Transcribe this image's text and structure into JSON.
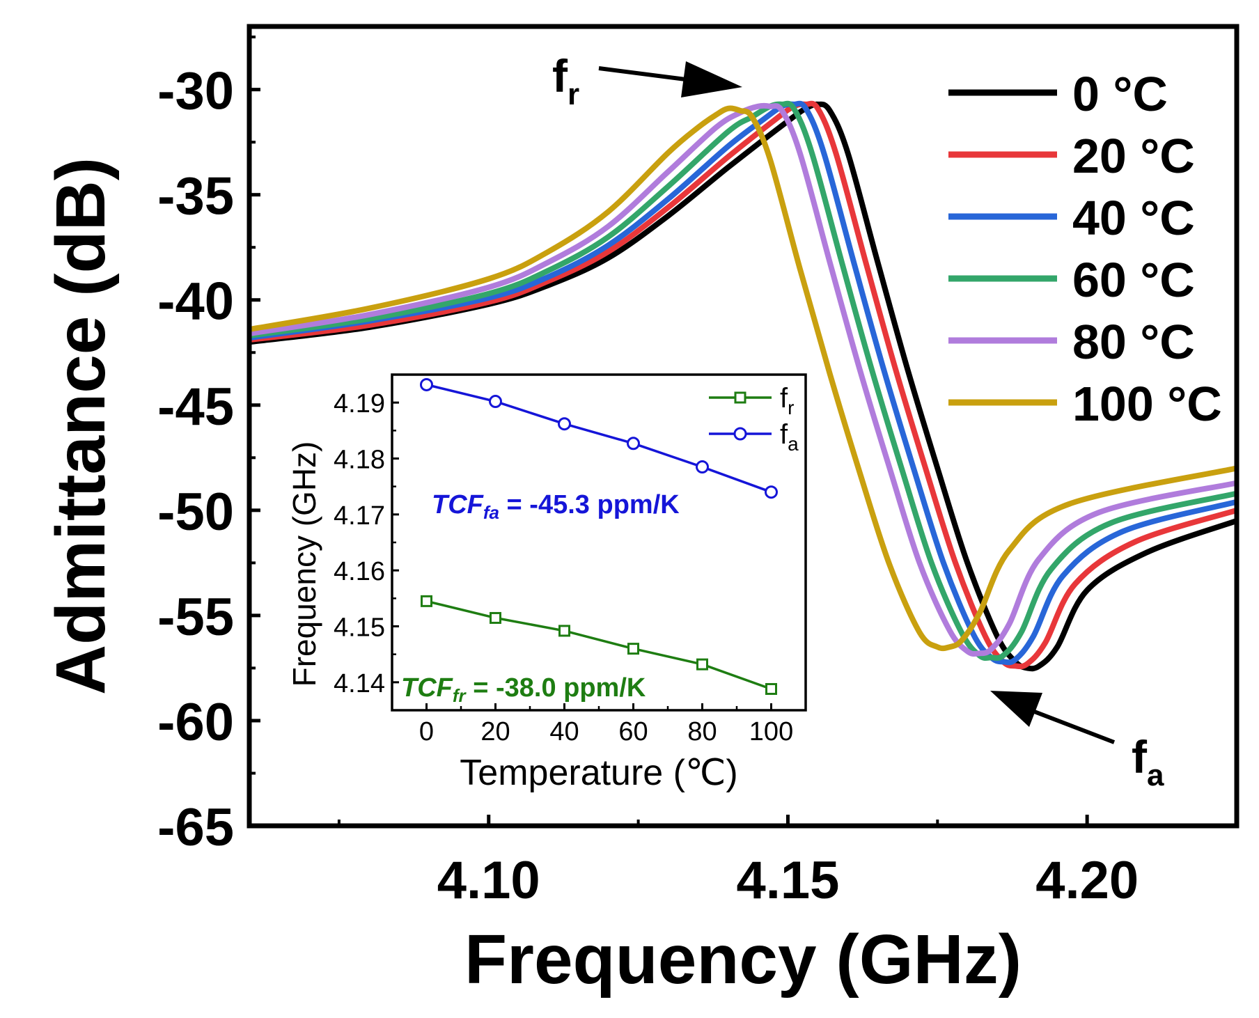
{
  "chart_data": [
    {
      "type": "line",
      "xlabel": "Frequency (GHz)",
      "ylabel": "Admittance (dB)",
      "xlim": [
        4.06,
        4.225
      ],
      "ylim": [
        -65,
        -27
      ],
      "xticks": [
        4.1,
        4.15,
        4.2
      ],
      "xtick_labels": [
        "4.10",
        "4.15",
        "4.20"
      ],
      "yticks": [
        -30,
        -35,
        -40,
        -45,
        -50,
        -55,
        -60,
        -65
      ],
      "ytick_labels": [
        "-30",
        "-35",
        "-40",
        "-45",
        "-50",
        "-55",
        "-60",
        "-65"
      ],
      "grid": false,
      "legend": "top-right",
      "series": [
        {
          "name": "0 °C",
          "color": "#000000",
          "x": [
            4.06,
            4.08,
            4.1,
            4.11,
            4.12,
            4.13,
            4.14,
            4.15,
            4.153,
            4.155,
            4.157,
            4.16,
            4.165,
            4.17,
            4.175,
            4.18,
            4.185,
            4.188,
            4.19,
            4.192,
            4.195,
            4.2,
            4.21,
            4.225
          ],
          "y": [
            -42.0,
            -41.3,
            -40.2,
            -39.3,
            -38.0,
            -36.0,
            -33.7,
            -31.5,
            -30.9,
            -30.7,
            -31.0,
            -33.0,
            -38.2,
            -43.3,
            -48.0,
            -52.5,
            -56.0,
            -57.2,
            -57.5,
            -57.4,
            -56.5,
            -53.8,
            -52.0,
            -50.5
          ]
        },
        {
          "name": "20 °C",
          "color": "#e8373a",
          "x": [
            4.06,
            4.08,
            4.1,
            4.11,
            4.12,
            4.13,
            4.14,
            4.148,
            4.151,
            4.153,
            4.155,
            4.158,
            4.163,
            4.168,
            4.173,
            4.178,
            4.183,
            4.186,
            4.188,
            4.19,
            4.193,
            4.198,
            4.208,
            4.225
          ],
          "y": [
            -41.9,
            -41.2,
            -40.1,
            -39.1,
            -37.7,
            -35.6,
            -33.2,
            -31.4,
            -30.8,
            -30.7,
            -30.9,
            -33.0,
            -38.2,
            -43.3,
            -48.0,
            -52.5,
            -56.0,
            -57.2,
            -57.4,
            -57.3,
            -56.3,
            -53.5,
            -51.5,
            -50.0
          ]
        },
        {
          "name": "40 °C",
          "color": "#2866d8",
          "x": [
            4.06,
            4.08,
            4.1,
            4.11,
            4.12,
            4.13,
            4.14,
            4.146,
            4.149,
            4.151,
            4.153,
            4.156,
            4.161,
            4.166,
            4.171,
            4.176,
            4.181,
            4.184,
            4.186,
            4.188,
            4.191,
            4.196,
            4.206,
            4.225
          ],
          "y": [
            -41.8,
            -41.0,
            -39.9,
            -38.9,
            -37.4,
            -35.2,
            -32.7,
            -31.4,
            -30.8,
            -30.7,
            -30.9,
            -33.0,
            -38.2,
            -43.3,
            -48.0,
            -52.5,
            -55.9,
            -57.0,
            -57.2,
            -57.1,
            -56.0,
            -53.1,
            -51.0,
            -49.6
          ]
        },
        {
          "name": "60 °C",
          "color": "#33a66a",
          "x": [
            4.06,
            4.08,
            4.1,
            4.11,
            4.12,
            4.13,
            4.14,
            4.144,
            4.147,
            4.149,
            4.151,
            4.154,
            4.159,
            4.164,
            4.169,
            4.174,
            4.179,
            4.182,
            4.184,
            4.186,
            4.189,
            4.194,
            4.204,
            4.225
          ],
          "y": [
            -41.7,
            -40.9,
            -39.7,
            -38.6,
            -37.0,
            -34.6,
            -32.0,
            -31.3,
            -30.8,
            -30.7,
            -30.9,
            -33.0,
            -38.2,
            -43.3,
            -48.0,
            -52.5,
            -55.8,
            -56.9,
            -57.0,
            -56.9,
            -55.8,
            -52.8,
            -50.6,
            -49.2
          ]
        },
        {
          "name": "80 °C",
          "color": "#b07cdc",
          "x": [
            4.06,
            4.08,
            4.1,
            4.11,
            4.12,
            4.13,
            4.138,
            4.142,
            4.145,
            4.147,
            4.149,
            4.152,
            4.157,
            4.162,
            4.167,
            4.172,
            4.177,
            4.18,
            4.182,
            4.184,
            4.187,
            4.192,
            4.202,
            4.225
          ],
          "y": [
            -41.6,
            -40.7,
            -39.4,
            -38.2,
            -36.5,
            -33.9,
            -31.8,
            -31.1,
            -30.8,
            -30.8,
            -31.0,
            -33.0,
            -38.2,
            -43.3,
            -48.0,
            -52.5,
            -55.7,
            -56.7,
            -56.8,
            -56.6,
            -55.4,
            -52.3,
            -50.1,
            -48.7
          ]
        },
        {
          "name": "100 °C",
          "color": "#c9a00f",
          "x": [
            4.06,
            4.08,
            4.1,
            4.11,
            4.12,
            4.13,
            4.135,
            4.138,
            4.14,
            4.142,
            4.144,
            4.147,
            4.152,
            4.157,
            4.162,
            4.167,
            4.172,
            4.175,
            4.177,
            4.179,
            4.182,
            4.187,
            4.197,
            4.225
          ],
          "y": [
            -41.4,
            -40.4,
            -39.0,
            -37.7,
            -35.8,
            -33.0,
            -31.8,
            -31.2,
            -30.9,
            -31.0,
            -31.3,
            -33.3,
            -38.5,
            -43.5,
            -48.2,
            -52.6,
            -55.8,
            -56.5,
            -56.5,
            -56.2,
            -54.9,
            -51.9,
            -49.7,
            -48.0
          ]
        }
      ],
      "annotations": [
        {
          "text": "f",
          "subscript": "r"
        },
        {
          "text": "f",
          "subscript": "a"
        }
      ]
    },
    {
      "type": "line",
      "xlabel": "Temperature (℃)",
      "ylabel": "Frequency (GHz)",
      "xlim": [
        -10,
        110
      ],
      "ylim": [
        4.135,
        4.195
      ],
      "xticks": [
        0,
        20,
        40,
        60,
        80,
        100
      ],
      "xtick_labels": [
        "0",
        "20",
        "40",
        "60",
        "80",
        "100"
      ],
      "yticks": [
        4.14,
        4.15,
        4.16,
        4.17,
        4.18,
        4.19
      ],
      "ytick_labels": [
        "4.14",
        "4.15",
        "4.16",
        "4.17",
        "4.18",
        "4.19"
      ],
      "grid": false,
      "legend": "top-right",
      "series": [
        {
          "name": "f",
          "subscript": "r",
          "color": "#1e7d12",
          "marker": "square",
          "x": [
            0,
            20,
            40,
            60,
            80,
            100
          ],
          "y": [
            4.1545,
            4.1515,
            4.1492,
            4.146,
            4.1432,
            4.1388
          ]
        },
        {
          "name": "f",
          "subscript": "a",
          "color": "#1515d8",
          "marker": "circle",
          "x": [
            0,
            20,
            40,
            60,
            80,
            100
          ],
          "y": [
            4.1932,
            4.1902,
            4.1862,
            4.1827,
            4.1785,
            4.174
          ]
        }
      ],
      "annotations": [
        {
          "prefix": "TCF",
          "subscript": "fa",
          "text": " = -45.3 ppm/K",
          "color": "#1515d8"
        },
        {
          "prefix": "TCF",
          "subscript": "fr",
          "text": " = -38.0 ppm/K",
          "color": "#1e7d12"
        }
      ]
    }
  ]
}
